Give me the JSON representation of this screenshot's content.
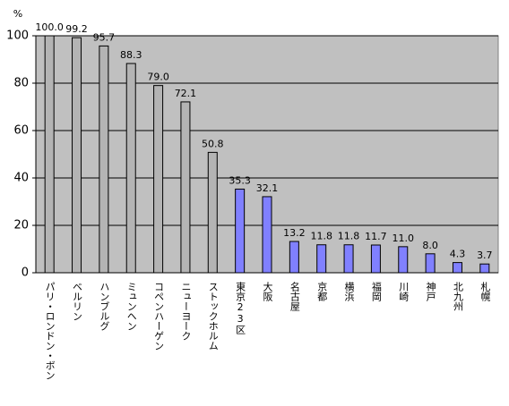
{
  "chart_data": {
    "type": "bar",
    "y_unit": "%",
    "categories": [
      "パリ・ロンドン・ボン",
      "ベルリン",
      "ハンブルグ",
      "ミュンヘン",
      "コペンハーゲン",
      "ニューヨーク",
      "ストックホルム",
      "東京23区",
      "大阪",
      "名古屋",
      "京都",
      "横浜",
      "福岡",
      "川崎",
      "神戸",
      "北九州",
      "札幌"
    ],
    "values": [
      100.0,
      99.2,
      95.7,
      88.3,
      79.0,
      72.1,
      50.8,
      35.3,
      32.1,
      13.2,
      11.8,
      11.8,
      11.7,
      11.0,
      8.0,
      4.3,
      3.7
    ],
    "value_labels": [
      "100.0",
      "99.2",
      "95.7",
      "88.3",
      "79.0",
      "72.1",
      "50.8",
      "35.3",
      "32.1",
      "13.2",
      "11.8",
      "11.8",
      "11.7",
      "11.0",
      "8.0",
      "4.3",
      "3.7"
    ],
    "colors": [
      "#b4b4b4",
      "#b4b4b4",
      "#b4b4b4",
      "#b4b4b4",
      "#b4b4b4",
      "#b4b4b4",
      "#b4b4b4",
      "#8080ff",
      "#8080ff",
      "#8080ff",
      "#8080ff",
      "#8080ff",
      "#8080ff",
      "#8080ff",
      "#8080ff",
      "#8080ff",
      "#8080ff"
    ],
    "ylim": [
      0,
      100
    ],
    "yticks": [
      0,
      20,
      40,
      60,
      80,
      100
    ],
    "grid": true
  }
}
